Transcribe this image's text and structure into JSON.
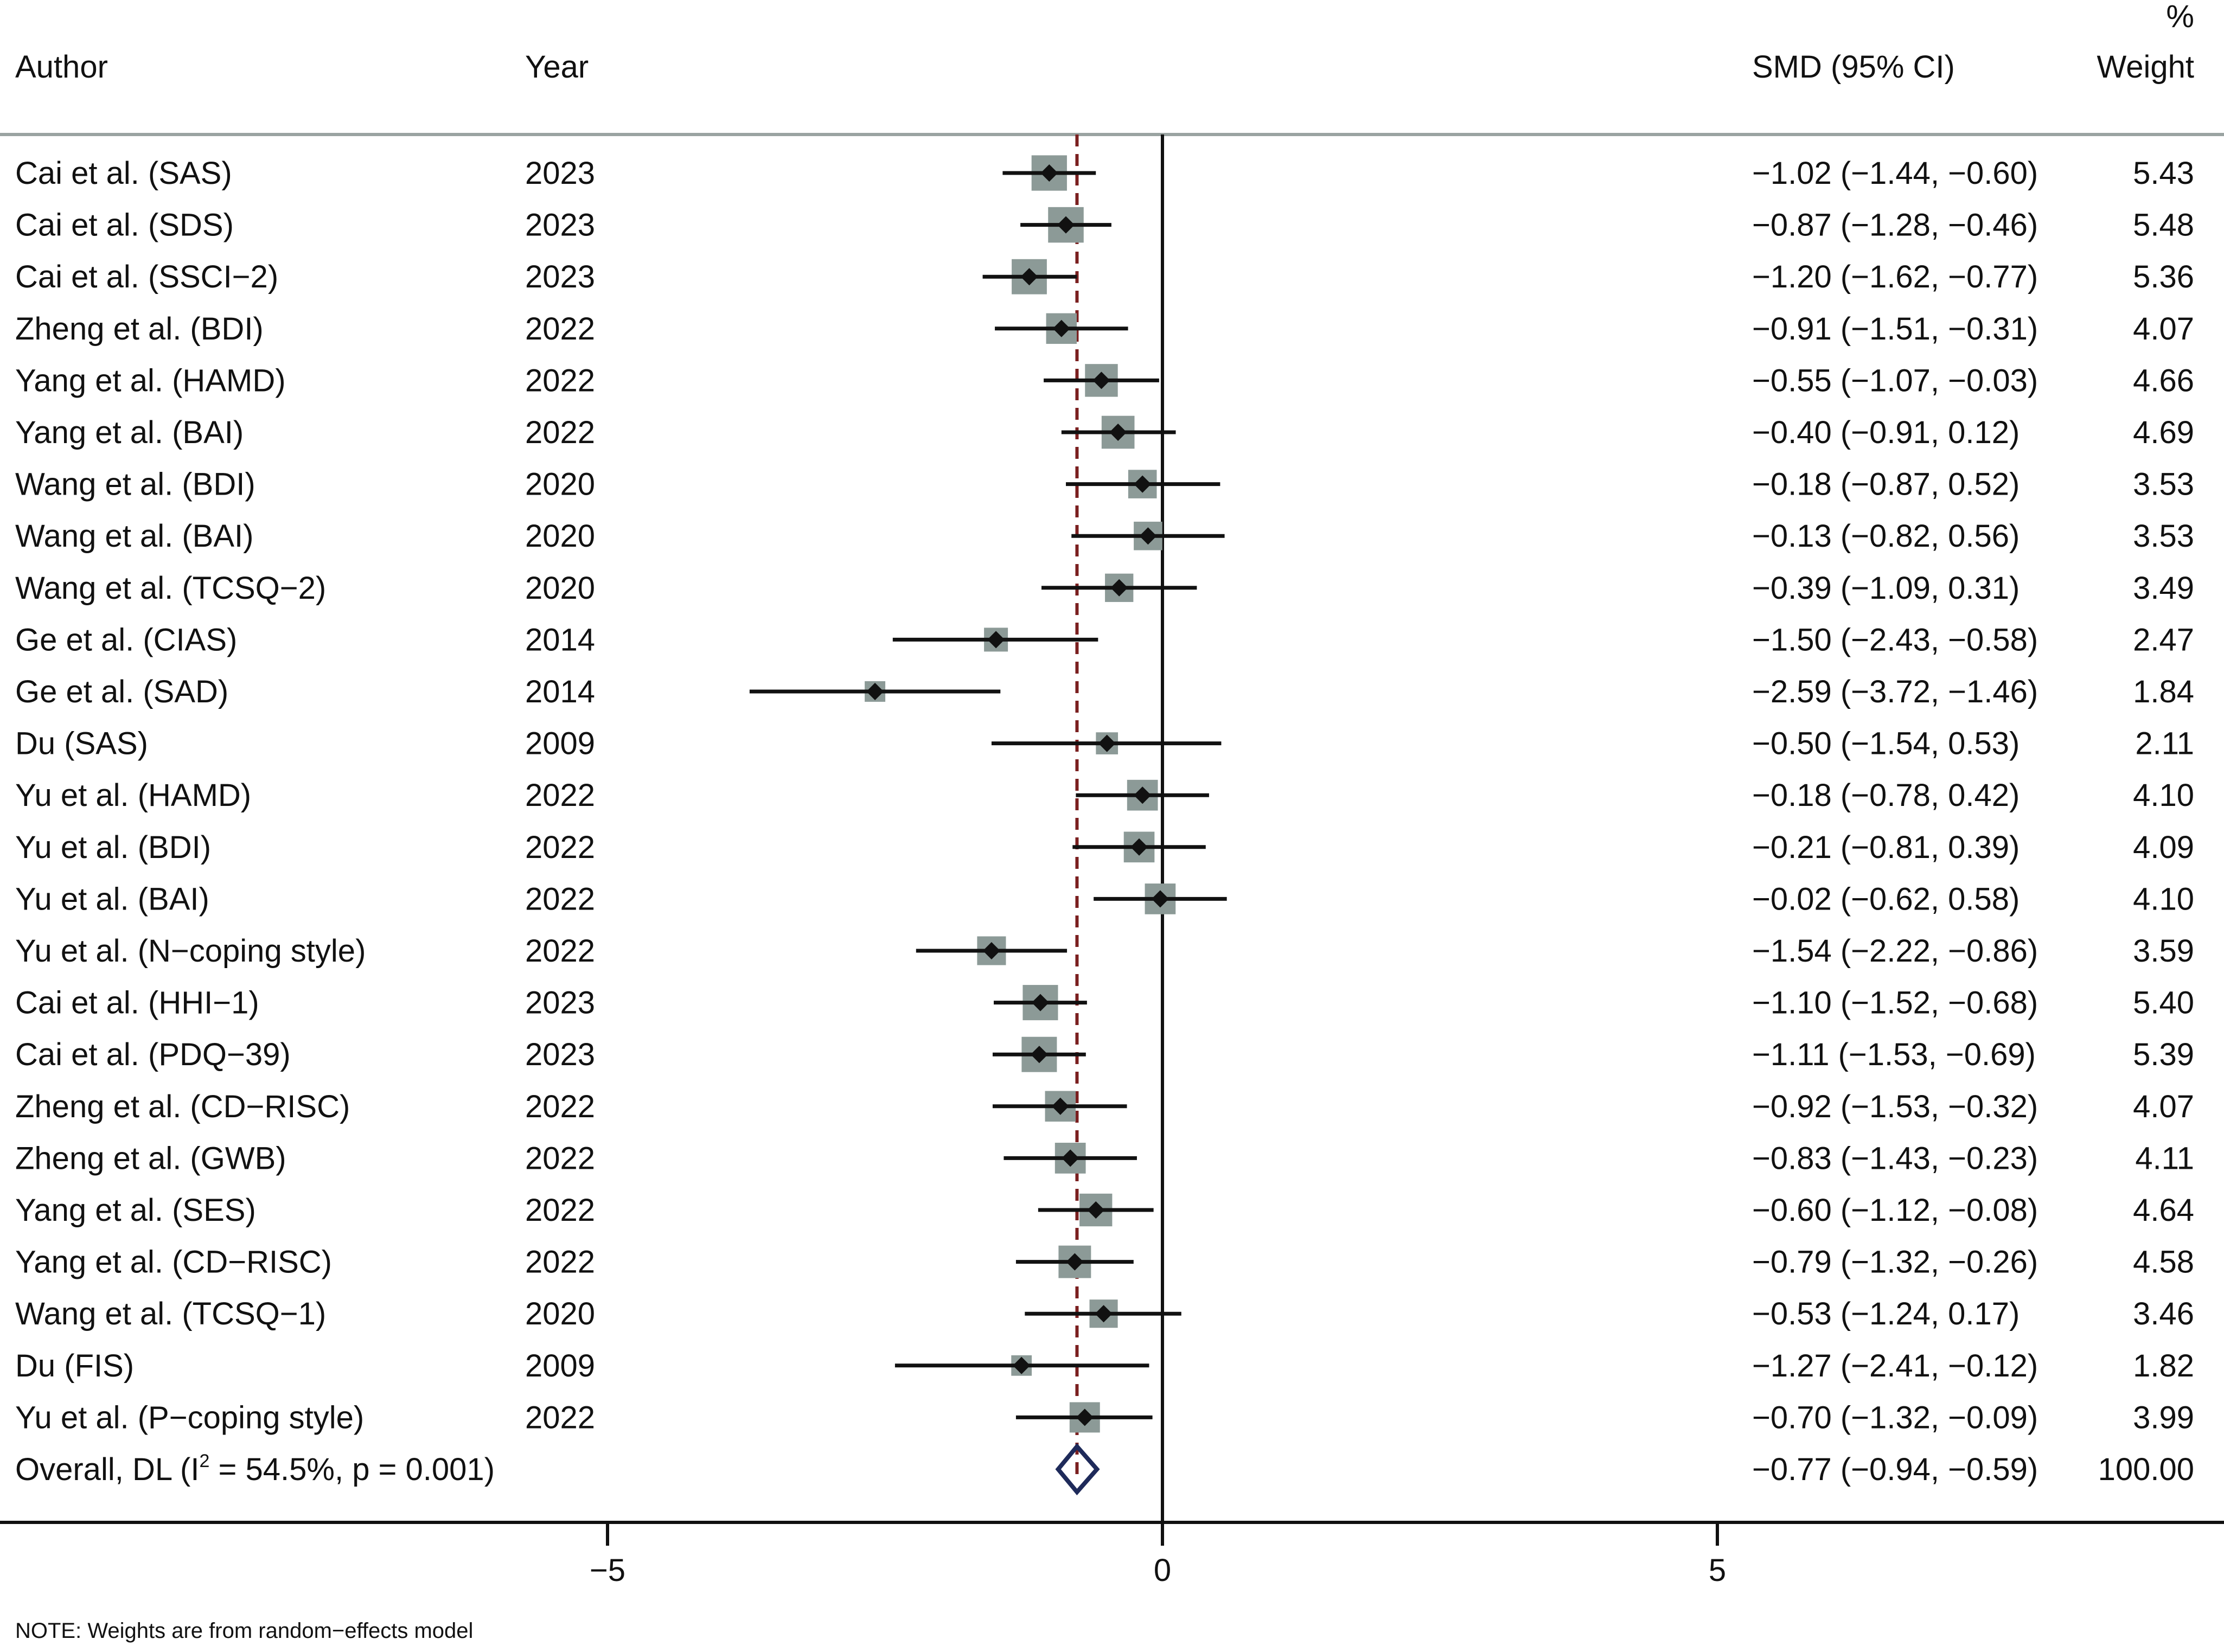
{
  "chart_data": {
    "type": "forest",
    "headers": {
      "author": "Author",
      "year": "Year",
      "smd": "SMD (95% CI)",
      "weight_pct": "%",
      "weight": "Weight"
    },
    "studies": [
      {
        "author": "Cai et al. (SAS)",
        "year": "2023",
        "smd": -1.02,
        "lo": -1.44,
        "hi": -0.6,
        "ci_text": "−1.02 (−1.44, −0.60)",
        "weight": 5.43,
        "weight_text": "5.43"
      },
      {
        "author": "Cai et al. (SDS)",
        "year": "2023",
        "smd": -0.87,
        "lo": -1.28,
        "hi": -0.46,
        "ci_text": "−0.87 (−1.28, −0.46)",
        "weight": 5.48,
        "weight_text": "5.48"
      },
      {
        "author": "Cai et al. (SSCI−2)",
        "year": "2023",
        "smd": -1.2,
        "lo": -1.62,
        "hi": -0.77,
        "ci_text": "−1.20 (−1.62, −0.77)",
        "weight": 5.36,
        "weight_text": "5.36"
      },
      {
        "author": "Zheng et al. (BDI)",
        "year": "2022",
        "smd": -0.91,
        "lo": -1.51,
        "hi": -0.31,
        "ci_text": "−0.91 (−1.51, −0.31)",
        "weight": 4.07,
        "weight_text": "4.07"
      },
      {
        "author": "Yang et al. (HAMD)",
        "year": "2022",
        "smd": -0.55,
        "lo": -1.07,
        "hi": -0.03,
        "ci_text": "−0.55 (−1.07, −0.03)",
        "weight": 4.66,
        "weight_text": "4.66"
      },
      {
        "author": "Yang et al. (BAI)",
        "year": "2022",
        "smd": -0.4,
        "lo": -0.91,
        "hi": 0.12,
        "ci_text": "−0.40 (−0.91, 0.12)",
        "weight": 4.69,
        "weight_text": "4.69"
      },
      {
        "author": "Wang et al. (BDI)",
        "year": "2020",
        "smd": -0.18,
        "lo": -0.87,
        "hi": 0.52,
        "ci_text": "−0.18 (−0.87, 0.52)",
        "weight": 3.53,
        "weight_text": "3.53"
      },
      {
        "author": "Wang et al. (BAI)",
        "year": "2020",
        "smd": -0.13,
        "lo": -0.82,
        "hi": 0.56,
        "ci_text": "−0.13 (−0.82, 0.56)",
        "weight": 3.53,
        "weight_text": "3.53"
      },
      {
        "author": "Wang et al. (TCSQ−2)",
        "year": "2020",
        "smd": -0.39,
        "lo": -1.09,
        "hi": 0.31,
        "ci_text": "−0.39 (−1.09, 0.31)",
        "weight": 3.49,
        "weight_text": "3.49"
      },
      {
        "author": "Ge et al. (CIAS)",
        "year": "2014",
        "smd": -1.5,
        "lo": -2.43,
        "hi": -0.58,
        "ci_text": "−1.50 (−2.43, −0.58)",
        "weight": 2.47,
        "weight_text": "2.47"
      },
      {
        "author": "Ge et al. (SAD)",
        "year": "2014",
        "smd": -2.59,
        "lo": -3.72,
        "hi": -1.46,
        "ci_text": "−2.59 (−3.72, −1.46)",
        "weight": 1.84,
        "weight_text": "1.84"
      },
      {
        "author": "Du (SAS)",
        "year": "2009",
        "smd": -0.5,
        "lo": -1.54,
        "hi": 0.53,
        "ci_text": "−0.50 (−1.54, 0.53)",
        "weight": 2.11,
        "weight_text": "2.11"
      },
      {
        "author": "Yu et al. (HAMD)",
        "year": "2022",
        "smd": -0.18,
        "lo": -0.78,
        "hi": 0.42,
        "ci_text": "−0.18 (−0.78, 0.42)",
        "weight": 4.1,
        "weight_text": "4.10"
      },
      {
        "author": "Yu et al. (BDI)",
        "year": "2022",
        "smd": -0.21,
        "lo": -0.81,
        "hi": 0.39,
        "ci_text": "−0.21 (−0.81, 0.39)",
        "weight": 4.09,
        "weight_text": "4.09"
      },
      {
        "author": "Yu et al. (BAI)",
        "year": "2022",
        "smd": -0.02,
        "lo": -0.62,
        "hi": 0.58,
        "ci_text": "−0.02 (−0.62, 0.58)",
        "weight": 4.1,
        "weight_text": "4.10"
      },
      {
        "author": "Yu et al. (N−coping style)",
        "year": "2022",
        "smd": -1.54,
        "lo": -2.22,
        "hi": -0.86,
        "ci_text": "−1.54 (−2.22, −0.86)",
        "weight": 3.59,
        "weight_text": "3.59"
      },
      {
        "author": "Cai et al.  (HHI−1)",
        "year": "2023",
        "smd": -1.1,
        "lo": -1.52,
        "hi": -0.68,
        "ci_text": "−1.10 (−1.52, −0.68)",
        "weight": 5.4,
        "weight_text": "5.40"
      },
      {
        "author": "Cai et al. (PDQ−39)",
        "year": "2023",
        "smd": -1.11,
        "lo": -1.53,
        "hi": -0.69,
        "ci_text": "−1.11 (−1.53, −0.69)",
        "weight": 5.39,
        "weight_text": "5.39"
      },
      {
        "author": "Zheng et al.  (CD−RISC)",
        "year": "2022",
        "smd": -0.92,
        "lo": -1.53,
        "hi": -0.32,
        "ci_text": "−0.92 (−1.53, −0.32)",
        "weight": 4.07,
        "weight_text": "4.07"
      },
      {
        "author": "Zheng et al.  (GWB)",
        "year": "2022",
        "smd": -0.83,
        "lo": -1.43,
        "hi": -0.23,
        "ci_text": "−0.83 (−1.43, −0.23)",
        "weight": 4.11,
        "weight_text": "4.11"
      },
      {
        "author": "Yang et al. (SES)",
        "year": "2022",
        "smd": -0.6,
        "lo": -1.12,
        "hi": -0.08,
        "ci_text": "−0.60 (−1.12, −0.08)",
        "weight": 4.64,
        "weight_text": "4.64"
      },
      {
        "author": "Yang et al.  (CD−RISC)",
        "year": "2022",
        "smd": -0.79,
        "lo": -1.32,
        "hi": -0.26,
        "ci_text": "−0.79 (−1.32, −0.26)",
        "weight": 4.58,
        "weight_text": "4.58"
      },
      {
        "author": "Wang et al.  (TCSQ−1)",
        "year": "2020",
        "smd": -0.53,
        "lo": -1.24,
        "hi": 0.17,
        "ci_text": "−0.53 (−1.24, 0.17)",
        "weight": 3.46,
        "weight_text": "3.46"
      },
      {
        "author": "Du  (FIS)",
        "year": "2009",
        "smd": -1.27,
        "lo": -2.41,
        "hi": -0.12,
        "ci_text": "−1.27 (−2.41, −0.12)",
        "weight": 1.82,
        "weight_text": "1.82"
      },
      {
        "author": "Yu et al.  (P−coping style)",
        "year": "2022",
        "smd": -0.7,
        "lo": -1.32,
        "hi": -0.09,
        "ci_text": "−0.70 (−1.32, −0.09)",
        "weight": 3.99,
        "weight_text": "3.99"
      }
    ],
    "overall": {
      "label_prefix": "Overall, DL (I",
      "label_sup": "2",
      "label_suffix": " = 54.5%, p = 0.001)",
      "smd": -0.77,
      "lo": -0.94,
      "hi": -0.59,
      "ci_text": "−0.77 (−0.94, −0.59)",
      "weight_text": "100.00"
    },
    "xaxis": {
      "ticks": [
        -5,
        0,
        5
      ],
      "tick_labels": [
        "−5",
        "0",
        "5"
      ],
      "range": [
        -10.5,
        9.2
      ]
    },
    "null_line": 0,
    "note": "NOTE: Weights are from random−effects model",
    "colors": {
      "box": "#8c9a97",
      "point": "#111111",
      "ci": "#111111",
      "overall_line": "#7a1f1f",
      "overall_diamond": "#1e2a5a",
      "header_rule": "#9aa3a1",
      "axis": "#111111"
    }
  }
}
